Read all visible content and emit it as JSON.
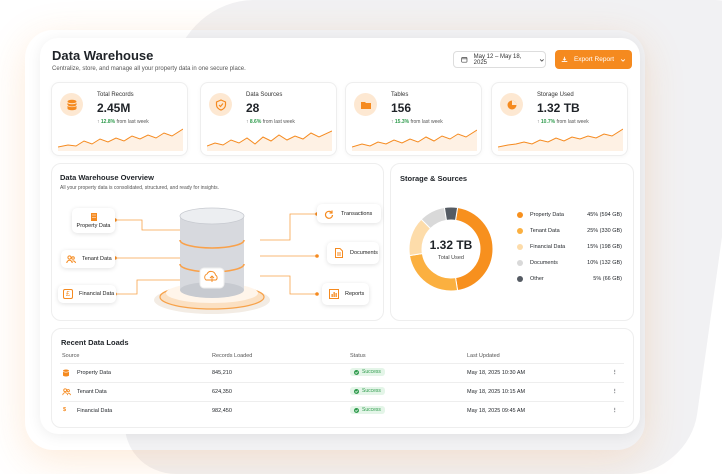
{
  "header": {
    "title": "Data Warehouse",
    "subtitle": "Centralize, store, and manage all your property data in one secure place.",
    "date_range": "May 12 – May 18, 2025",
    "export_label": "Export Report"
  },
  "kpis": [
    {
      "label": "Total Records",
      "value": "2.45M",
      "delta": "12.8%",
      "delta_text": "from last week",
      "icon": "database-icon"
    },
    {
      "label": "Data Sources",
      "value": "28",
      "delta": "8.6%",
      "delta_text": "from last week",
      "icon": "shield-check-icon"
    },
    {
      "label": "Tables",
      "value": "156",
      "delta": "15.3%",
      "delta_text": "from last week",
      "icon": "folder-icon"
    },
    {
      "label": "Storage Used",
      "value": "1.32 TB",
      "delta": "10.7%",
      "delta_text": "from last week",
      "icon": "pie-chart-icon"
    }
  ],
  "overview": {
    "title": "Data Warehouse Overview",
    "subtitle": "All your property data is consolidated, structured, and ready for insights.",
    "sources": [
      {
        "label": "Property Data",
        "icon": "building-icon"
      },
      {
        "label": "Tenant Data",
        "icon": "users-icon"
      },
      {
        "label": "Financial Data",
        "icon": "pound-icon"
      }
    ],
    "outputs": [
      {
        "label": "Transactions",
        "icon": "refresh-icon"
      },
      {
        "label": "Documents",
        "icon": "document-icon"
      },
      {
        "label": "Reports",
        "icon": "bar-chart-icon"
      }
    ]
  },
  "storage": {
    "title": "Storage & Sources",
    "center_value": "1.32 TB",
    "center_label": "Total Used",
    "chart_data": {
      "type": "pie",
      "categories": [
        "Property Data",
        "Tenant Data",
        "Financial Data",
        "Documents",
        "Other"
      ],
      "values": [
        45,
        25,
        15,
        10,
        5
      ],
      "labels": [
        "45% (594 GB)",
        "25% (330 GB)",
        "15% (198 GB)",
        "10% (132 GB)",
        "5% (66 GB)"
      ],
      "colors": [
        "#f7901e",
        "#fbb040",
        "#fddcaa",
        "#d9d9d9",
        "#555b63"
      ]
    }
  },
  "loads": {
    "title": "Recent Data Loads",
    "headers": [
      "Source",
      "Records Loaded",
      "Status",
      "Last Updated"
    ],
    "rows": [
      {
        "source": "Property Data",
        "records": "845,210",
        "status": "Success",
        "updated": "May 18, 2025 10:30 AM",
        "icon": "database-icon"
      },
      {
        "source": "Tenant Data",
        "records": "624,350",
        "status": "Success",
        "updated": "May 18, 2025 10:15 AM",
        "icon": "users-icon"
      },
      {
        "source": "Financial Data",
        "records": "982,450",
        "status": "Success",
        "updated": "May 18, 2025 09:45 AM",
        "icon": "dollar-icon"
      }
    ]
  },
  "colors": {
    "accent": "#f58a1f",
    "success": "#2e9b4c"
  }
}
